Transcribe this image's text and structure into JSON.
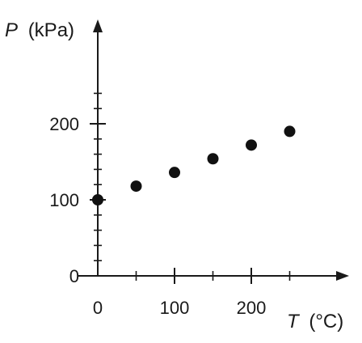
{
  "chart_data": {
    "type": "scatter",
    "title": "",
    "x_symbol": "T",
    "x_unit": "(°C)",
    "y_symbol": "P",
    "y_unit": "(kPa)",
    "xlim": [
      0,
      300
    ],
    "ylim": [
      0,
      260
    ],
    "x_major_ticks": [
      0,
      100,
      200
    ],
    "x_minor_ticks": [
      50,
      150,
      250
    ],
    "x_tick_labels": [
      "0",
      "100",
      "200"
    ],
    "y_major_ticks": [
      0,
      100,
      200
    ],
    "y_minor_ticks": [
      20,
      40,
      60,
      80,
      120,
      140,
      160,
      180,
      220,
      240
    ],
    "y_tick_labels": [
      "0",
      "100",
      "200"
    ],
    "grid": false,
    "legend": "none",
    "marker_color": "#111111",
    "points": [
      {
        "x": 0,
        "y": 100
      },
      {
        "x": 50,
        "y": 118
      },
      {
        "x": 100,
        "y": 136
      },
      {
        "x": 150,
        "y": 154
      },
      {
        "x": 200,
        "y": 172
      },
      {
        "x": 250,
        "y": 190
      }
    ]
  }
}
